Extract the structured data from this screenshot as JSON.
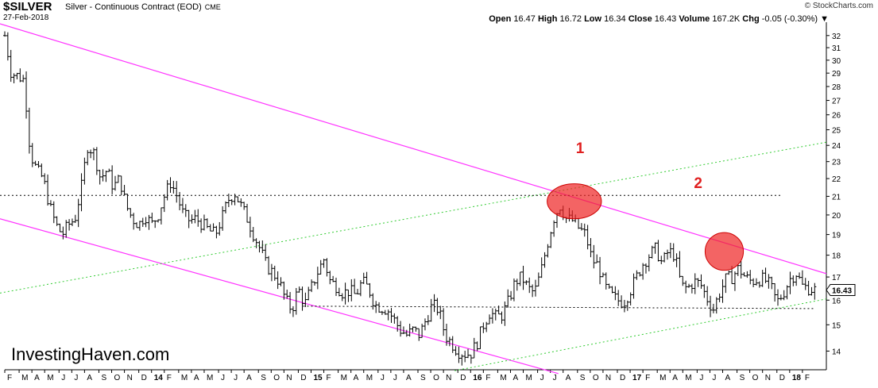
{
  "header": {
    "symbol": "$SILVER",
    "description": "Silver - Continuous Contract (EOD)",
    "exchange": "CME",
    "date": "27-Feb-2018",
    "copyright": "© StockCharts.com",
    "open_label": "Open",
    "open_value": "16.47",
    "high_label": "High",
    "high_value": "16.72",
    "low_label": "Low",
    "low_value": "16.34",
    "close_label": "Close",
    "close_value": "16.43",
    "volume_label": "Volume",
    "volume_value": "167.2K",
    "chg_label": "Chg",
    "chg_value": "-0.05 (-0.30%)",
    "chg_arrow": "▼"
  },
  "watermark": "InvestingHaven.com",
  "chart_data": {
    "type": "bar",
    "subtype": "ohlc",
    "yaxis": {
      "ticks": [
        14,
        15,
        16,
        17,
        18,
        19,
        20,
        21,
        22,
        23,
        24,
        25,
        26,
        27,
        28,
        29,
        30,
        31,
        32
      ],
      "position": "right",
      "scale": "log"
    },
    "ylim": [
      13.5,
      33
    ],
    "xlim": [
      2013.08,
      2018.23
    ],
    "xaxis_labels": [
      {
        "label": "F",
        "t": 2013.08
      },
      {
        "label": "M",
        "t": 2013.17
      },
      {
        "label": "A",
        "t": 2013.25
      },
      {
        "label": "M",
        "t": 2013.33
      },
      {
        "label": "J",
        "t": 2013.42
      },
      {
        "label": "J",
        "t": 2013.5
      },
      {
        "label": "A",
        "t": 2013.58
      },
      {
        "label": "S",
        "t": 2013.67
      },
      {
        "label": "O",
        "t": 2013.75
      },
      {
        "label": "N",
        "t": 2013.83
      },
      {
        "label": "D",
        "t": 2013.92
      },
      {
        "label": "14",
        "t": 2014.0,
        "bold": true
      },
      {
        "label": "F",
        "t": 2014.08
      },
      {
        "label": "M",
        "t": 2014.17
      },
      {
        "label": "A",
        "t": 2014.25
      },
      {
        "label": "M",
        "t": 2014.33
      },
      {
        "label": "J",
        "t": 2014.42
      },
      {
        "label": "J",
        "t": 2014.5
      },
      {
        "label": "A",
        "t": 2014.58
      },
      {
        "label": "S",
        "t": 2014.67
      },
      {
        "label": "O",
        "t": 2014.75
      },
      {
        "label": "N",
        "t": 2014.83
      },
      {
        "label": "D",
        "t": 2014.92
      },
      {
        "label": "15",
        "t": 2015.0,
        "bold": true
      },
      {
        "label": "F",
        "t": 2015.08
      },
      {
        "label": "M",
        "t": 2015.17
      },
      {
        "label": "A",
        "t": 2015.25
      },
      {
        "label": "M",
        "t": 2015.33
      },
      {
        "label": "J",
        "t": 2015.42
      },
      {
        "label": "J",
        "t": 2015.5
      },
      {
        "label": "A",
        "t": 2015.58
      },
      {
        "label": "S",
        "t": 2015.67
      },
      {
        "label": "O",
        "t": 2015.75
      },
      {
        "label": "N",
        "t": 2015.83
      },
      {
        "label": "D",
        "t": 2015.92
      },
      {
        "label": "16",
        "t": 2016.0,
        "bold": true
      },
      {
        "label": "F",
        "t": 2016.08
      },
      {
        "label": "M",
        "t": 2016.17
      },
      {
        "label": "A",
        "t": 2016.25
      },
      {
        "label": "M",
        "t": 2016.33
      },
      {
        "label": "J",
        "t": 2016.42
      },
      {
        "label": "J",
        "t": 2016.5
      },
      {
        "label": "A",
        "t": 2016.58
      },
      {
        "label": "S",
        "t": 2016.67
      },
      {
        "label": "O",
        "t": 2016.75
      },
      {
        "label": "N",
        "t": 2016.83
      },
      {
        "label": "D",
        "t": 2016.92
      },
      {
        "label": "17",
        "t": 2017.0,
        "bold": true
      },
      {
        "label": "F",
        "t": 2017.08
      },
      {
        "label": "M",
        "t": 2017.17
      },
      {
        "label": "A",
        "t": 2017.25
      },
      {
        "label": "M",
        "t": 2017.33
      },
      {
        "label": "J",
        "t": 2017.42
      },
      {
        "label": "J",
        "t": 2017.5
      },
      {
        "label": "A",
        "t": 2017.58
      },
      {
        "label": "S",
        "t": 2017.67
      },
      {
        "label": "O",
        "t": 2017.75
      },
      {
        "label": "N",
        "t": 2017.83
      },
      {
        "label": "D",
        "t": 2017.92
      },
      {
        "label": "18",
        "t": 2018.0,
        "bold": true
      },
      {
        "label": "F",
        "t": 2018.08
      }
    ],
    "price_path": [
      [
        2013.08,
        32.0
      ],
      [
        2013.12,
        29.0
      ],
      [
        2013.16,
        28.8
      ],
      [
        2013.2,
        28.5
      ],
      [
        2013.24,
        23.5
      ],
      [
        2013.28,
        22.5
      ],
      [
        2013.32,
        22.0
      ],
      [
        2013.36,
        20.5
      ],
      [
        2013.4,
        19.5
      ],
      [
        2013.44,
        19.0
      ],
      [
        2013.48,
        19.5
      ],
      [
        2013.52,
        19.8
      ],
      [
        2013.56,
        21.5
      ],
      [
        2013.6,
        24.0
      ],
      [
        2013.64,
        23.5
      ],
      [
        2013.68,
        22.0
      ],
      [
        2013.72,
        22.5
      ],
      [
        2013.76,
        21.5
      ],
      [
        2013.8,
        22.0
      ],
      [
        2013.84,
        20.5
      ],
      [
        2013.88,
        19.8
      ],
      [
        2013.92,
        19.5
      ],
      [
        2013.96,
        20.0
      ],
      [
        2014.0,
        19.5
      ],
      [
        2014.04,
        20.0
      ],
      [
        2014.08,
        21.0
      ],
      [
        2014.12,
        21.8
      ],
      [
        2014.16,
        21.0
      ],
      [
        2014.2,
        20.0
      ],
      [
        2014.24,
        19.7
      ],
      [
        2014.28,
        19.8
      ],
      [
        2014.32,
        19.5
      ],
      [
        2014.36,
        19.2
      ],
      [
        2014.4,
        19.0
      ],
      [
        2014.44,
        19.8
      ],
      [
        2014.48,
        20.8
      ],
      [
        2014.52,
        21.2
      ],
      [
        2014.56,
        20.5
      ],
      [
        2014.6,
        19.8
      ],
      [
        2014.64,
        19.0
      ],
      [
        2014.68,
        18.3
      ],
      [
        2014.72,
        17.5
      ],
      [
        2014.76,
        17.2
      ],
      [
        2014.8,
        16.8
      ],
      [
        2014.84,
        16.0
      ],
      [
        2014.88,
        15.6
      ],
      [
        2014.92,
        16.5
      ],
      [
        2014.96,
        15.8
      ],
      [
        2015.0,
        16.5
      ],
      [
        2015.04,
        17.2
      ],
      [
        2015.08,
        17.8
      ],
      [
        2015.12,
        16.8
      ],
      [
        2015.16,
        16.6
      ],
      [
        2015.2,
        16.3
      ],
      [
        2015.24,
        16.4
      ],
      [
        2015.28,
        16.2
      ],
      [
        2015.32,
        16.8
      ],
      [
        2015.36,
        16.5
      ],
      [
        2015.4,
        15.8
      ],
      [
        2015.44,
        15.7
      ],
      [
        2015.48,
        15.6
      ],
      [
        2015.52,
        15.2
      ],
      [
        2015.56,
        14.8
      ],
      [
        2015.6,
        14.6
      ],
      [
        2015.64,
        14.8
      ],
      [
        2015.68,
        14.6
      ],
      [
        2015.72,
        15.2
      ],
      [
        2015.76,
        15.8
      ],
      [
        2015.8,
        15.6
      ],
      [
        2015.84,
        14.6
      ],
      [
        2015.88,
        14.3
      ],
      [
        2015.92,
        14.0
      ],
      [
        2015.96,
        13.9
      ],
      [
        2016.0,
        13.9
      ],
      [
        2016.04,
        14.3
      ],
      [
        2016.08,
        15.0
      ],
      [
        2016.12,
        15.5
      ],
      [
        2016.16,
        15.3
      ],
      [
        2016.2,
        15.4
      ],
      [
        2016.24,
        16.0
      ],
      [
        2016.28,
        16.8
      ],
      [
        2016.32,
        17.0
      ],
      [
        2016.36,
        16.5
      ],
      [
        2016.4,
        16.3
      ],
      [
        2016.44,
        17.2
      ],
      [
        2016.48,
        18.5
      ],
      [
        2016.52,
        19.8
      ],
      [
        2016.56,
        20.5
      ],
      [
        2016.6,
        19.8
      ],
      [
        2016.64,
        19.7
      ],
      [
        2016.68,
        19.3
      ],
      [
        2016.72,
        19.0
      ],
      [
        2016.76,
        17.8
      ],
      [
        2016.8,
        17.5
      ],
      [
        2016.84,
        16.6
      ],
      [
        2016.88,
        16.2
      ],
      [
        2016.92,
        16.0
      ],
      [
        2016.96,
        15.9
      ],
      [
        2017.0,
        16.4
      ],
      [
        2017.04,
        17.0
      ],
      [
        2017.08,
        17.6
      ],
      [
        2017.12,
        18.0
      ],
      [
        2017.16,
        18.3
      ],
      [
        2017.2,
        17.6
      ],
      [
        2017.24,
        18.2
      ],
      [
        2017.28,
        18.0
      ],
      [
        2017.32,
        16.6
      ],
      [
        2017.36,
        16.5
      ],
      [
        2017.4,
        16.8
      ],
      [
        2017.44,
        16.7
      ],
      [
        2017.48,
        16.1
      ],
      [
        2017.52,
        15.6
      ],
      [
        2017.56,
        16.3
      ],
      [
        2017.6,
        16.9
      ],
      [
        2017.64,
        17.0
      ],
      [
        2017.68,
        17.4
      ],
      [
        2017.72,
        17.0
      ],
      [
        2017.76,
        16.8
      ],
      [
        2017.8,
        16.9
      ],
      [
        2017.84,
        16.9
      ],
      [
        2017.88,
        16.6
      ],
      [
        2017.92,
        15.9
      ],
      [
        2017.96,
        16.3
      ],
      [
        2018.0,
        16.9
      ],
      [
        2018.04,
        17.2
      ],
      [
        2018.08,
        16.6
      ],
      [
        2018.12,
        16.5
      ],
      [
        2018.16,
        16.43
      ]
    ],
    "trend_lines": [
      {
        "style": "magenta",
        "points": [
          [
            2013.05,
            33.0
          ],
          [
            2018.23,
            17.15
          ]
        ]
      },
      {
        "style": "magenta",
        "points": [
          [
            2013.05,
            19.8
          ],
          [
            2016.55,
            13.2
          ]
        ]
      },
      {
        "style": "green-dotted",
        "points": [
          [
            2013.05,
            16.3
          ],
          [
            2018.23,
            24.2
          ]
        ]
      },
      {
        "style": "green-dotted",
        "points": [
          [
            2015.9,
            13.3
          ],
          [
            2018.23,
            16.05
          ]
        ]
      },
      {
        "style": "black-dotted",
        "points": [
          [
            2013.05,
            21.05
          ],
          [
            2017.95,
            21.05
          ]
        ]
      },
      {
        "style": "black-dotted",
        "points": [
          [
            2014.95,
            15.75
          ],
          [
            2018.15,
            15.65
          ]
        ]
      }
    ],
    "highlights": [
      {
        "label": "1",
        "center": [
          2016.65,
          20.7
        ],
        "rx": 0.17,
        "y_range": [
          19.8,
          21.7
        ]
      },
      {
        "label": "2",
        "center": [
          2017.59,
          18.1
        ],
        "rx": 0.12,
        "y_range": [
          17.3,
          19.1
        ]
      }
    ],
    "last_price_label": "16.43",
    "colors": {
      "bars": "#000000",
      "resistance": "#ff33ff",
      "support": "#33cc33",
      "highlight": "#ee2222",
      "annotation": "#e02020"
    }
  }
}
